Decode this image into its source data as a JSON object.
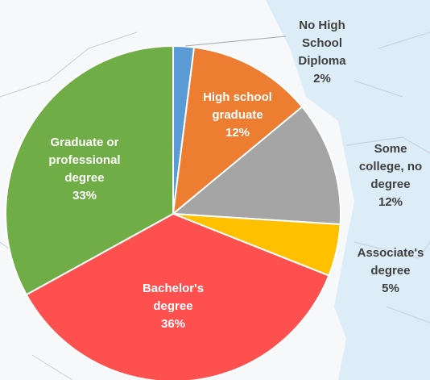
{
  "chart_data": {
    "type": "pie",
    "categories": [
      "No High School Diploma",
      "High school graduate",
      "Some college, no degree",
      "Associate's degree",
      "Bachelor's degree",
      "Graduate or professional degree"
    ],
    "values": [
      2,
      12,
      12,
      5,
      36,
      33
    ],
    "value_labels": [
      "2%",
      "12%",
      "12%",
      "5%",
      "36%",
      "33%"
    ],
    "colors": [
      "#5b9bd5",
      "#ed7d31",
      "#a5a5a5",
      "#ffc000",
      "#ff5050",
      "#70ad47"
    ]
  }
}
